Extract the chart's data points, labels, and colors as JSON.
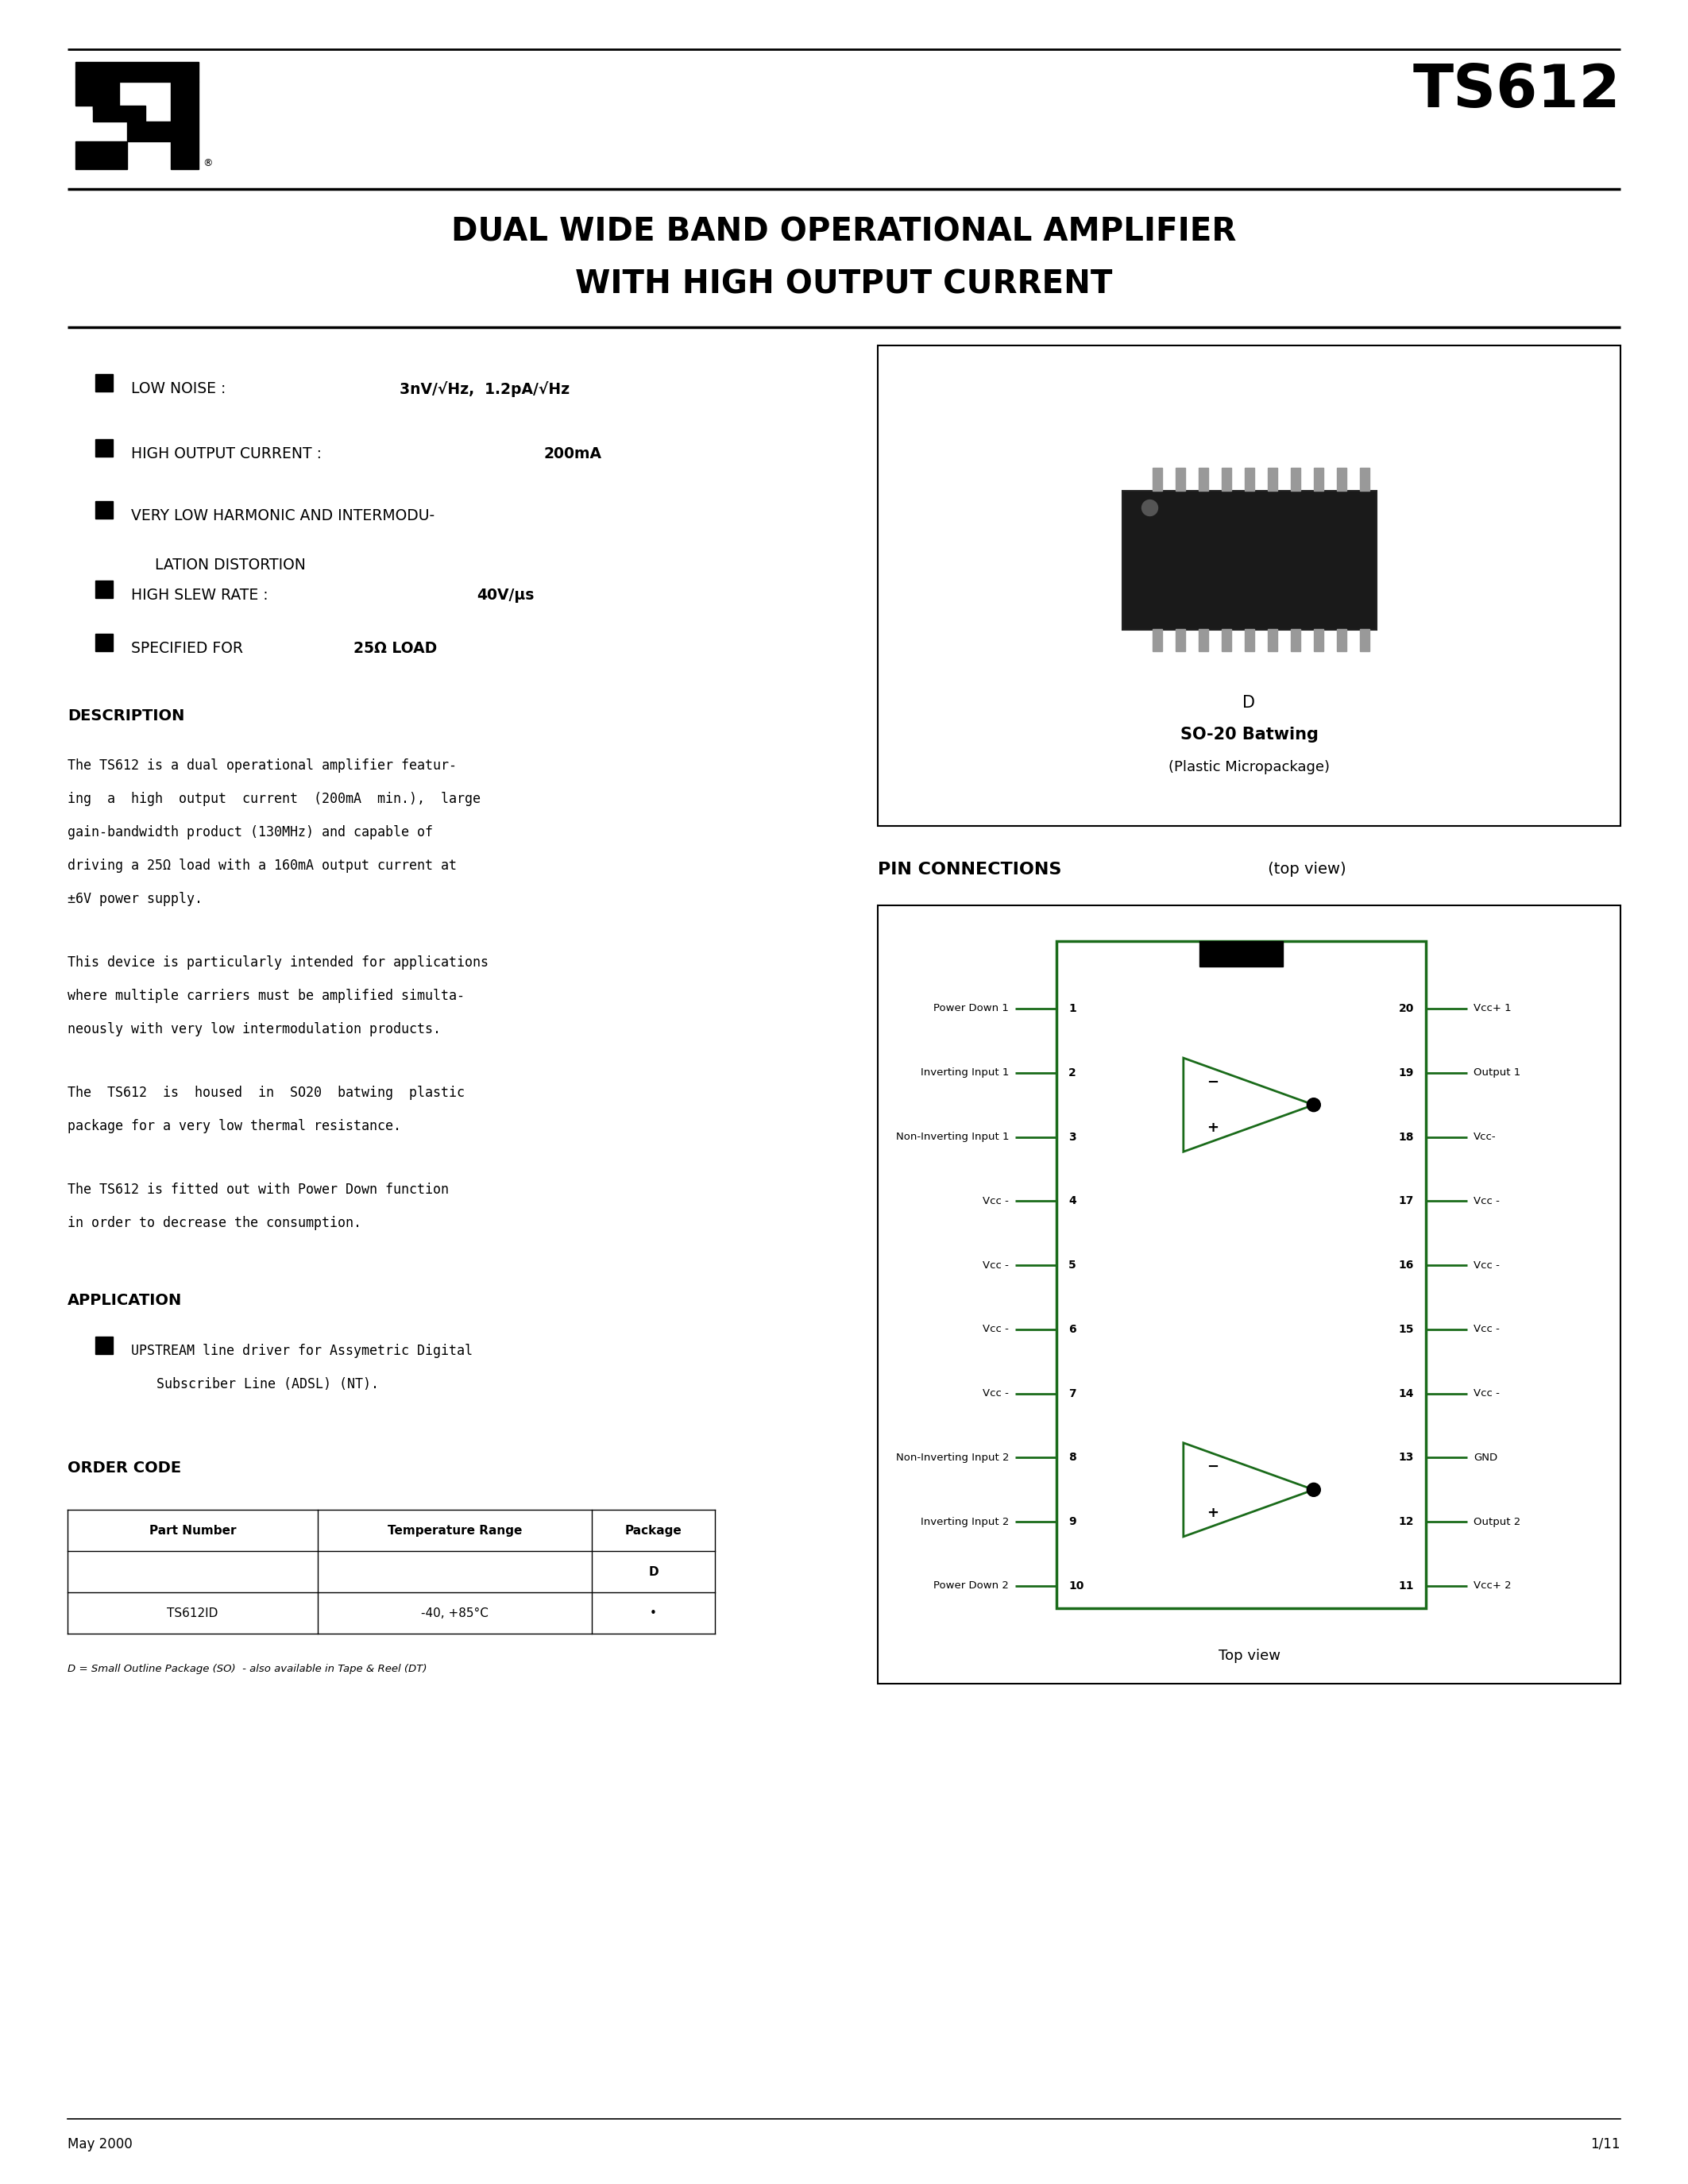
{
  "page_width": 21.25,
  "page_height": 27.5,
  "bg_color": "#ffffff",
  "title_model": "TS612",
  "title_desc_line1": "DUAL WIDE BAND OPERATIONAL AMPLIFIER",
  "title_desc_line2": "WITH HIGH OUTPUT CURRENT",
  "bullet1_normal": "LOW NOISE : ",
  "bullet1_bold": "3nV/√Hz,  1.2pA/√Hz",
  "bullet2_normal": "HIGH OUTPUT CURRENT : ",
  "bullet2_bold": "200mA",
  "bullet3_line1": "VERY LOW HARMONIC AND INTERMODU-",
  "bullet3_line2": "LATION DISTORTION",
  "bullet4_normal": "HIGH SLEW RATE : ",
  "bullet4_bold": "40V/μs",
  "bullet5_normal": "SPECIFIED FOR ",
  "bullet5_bold": "25Ω LOAD",
  "desc_title": "DESCRIPTION",
  "desc_para1_line1": "The TS612 is a dual operational amplifier featur-",
  "desc_para1_line2": "ing  a  high  output  current  (200mA  min.),  large",
  "desc_para1_line3": "gain-bandwidth product (130MHz) and capable of",
  "desc_para1_line4": "driving a 25Ω load with a 160mA output current at",
  "desc_para1_line5": "±6V power supply.",
  "desc_para2_line1": "This device is particularly intended for applications",
  "desc_para2_line2": "where multiple carriers must be amplified simulta-",
  "desc_para2_line3": "neously with very low intermodulation products.",
  "desc_para3_line1": "The  TS612  is  housed  in  SO20  batwing  plastic",
  "desc_para3_line2": "package for a very low thermal resistance.",
  "desc_para4_line1": "The TS612 is fitted out with Power Down function",
  "desc_para4_line2": "in order to decrease the consumption.",
  "app_title": "APPLICATION",
  "app_bullet": "UPSTREAM line driver for Assymetric Digital",
  "app_bullet2": "Subscriber Line (ADSL) (NT).",
  "order_title": "ORDER CODE",
  "pkg_label1": "D",
  "pkg_label2": "SO-20 Batwing",
  "pkg_label3": "(Plastic Micropackage)",
  "pin_conn_title": "PIN CONNECTIONS",
  "pin_conn_sub": " (top view)",
  "left_pins": [
    [
      1,
      "Power Down 1"
    ],
    [
      2,
      "Inverting Input 1"
    ],
    [
      3,
      "Non-Inverting Input 1"
    ],
    [
      4,
      "Vcc -"
    ],
    [
      5,
      "Vcc -"
    ],
    [
      6,
      "Vcc -"
    ],
    [
      7,
      "Vcc -"
    ],
    [
      8,
      "Non-Inverting Input 2"
    ],
    [
      9,
      "Inverting Input 2"
    ],
    [
      10,
      "Power Down 2"
    ]
  ],
  "right_pins": [
    [
      20,
      "Vcc+ 1"
    ],
    [
      19,
      "Output 1"
    ],
    [
      18,
      "Vcc-"
    ],
    [
      17,
      "Vcc -"
    ],
    [
      16,
      "Vcc -"
    ],
    [
      15,
      "Vcc -"
    ],
    [
      14,
      "Vcc -"
    ],
    [
      13,
      "GND"
    ],
    [
      12,
      "Output 2"
    ],
    [
      11,
      "Vcc+ 2"
    ]
  ],
  "footer_left": "May 2000",
  "footer_right": "1/11",
  "green_color": "#1a6b1a",
  "order_note": "D = Small Outline Package (SO)  - also available in Tape & Reel (DT)"
}
